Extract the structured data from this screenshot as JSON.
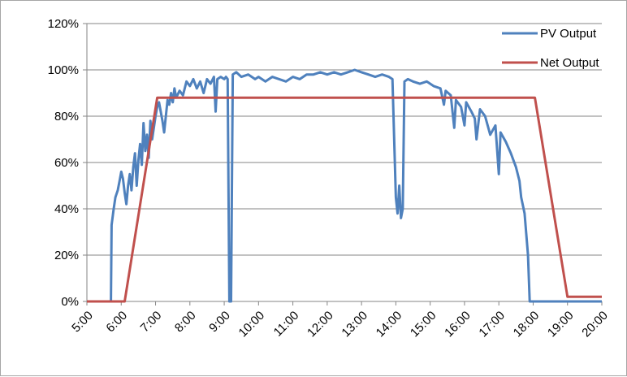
{
  "chart_data": {
    "type": "line",
    "title": "",
    "xlabel": "",
    "ylabel": "",
    "x_ticks": [
      "5:00",
      "6:00",
      "7:00",
      "8:00",
      "9:00",
      "10:00",
      "11:00",
      "12:00",
      "13:00",
      "14:00",
      "15:00",
      "16:00",
      "17:00",
      "18:00",
      "19:00",
      "20:00"
    ],
    "y_ticks": [
      "0%",
      "20%",
      "40%",
      "60%",
      "80%",
      "100%",
      "120%"
    ],
    "xlim": [
      5,
      20
    ],
    "ylim": [
      0,
      120
    ],
    "grid": "horizontal",
    "legend_position": "top-right",
    "series": [
      {
        "name": "PV Output",
        "color": "#4f81bd",
        "points": [
          [
            5.0,
            0
          ],
          [
            5.7,
            0
          ],
          [
            5.72,
            33
          ],
          [
            5.78,
            40
          ],
          [
            5.83,
            45
          ],
          [
            5.9,
            48
          ],
          [
            5.95,
            52
          ],
          [
            6.0,
            56
          ],
          [
            6.05,
            53
          ],
          [
            6.1,
            47
          ],
          [
            6.15,
            42
          ],
          [
            6.2,
            50
          ],
          [
            6.25,
            55
          ],
          [
            6.3,
            48
          ],
          [
            6.35,
            58
          ],
          [
            6.4,
            64
          ],
          [
            6.45,
            50
          ],
          [
            6.5,
            61
          ],
          [
            6.55,
            68
          ],
          [
            6.6,
            59
          ],
          [
            6.65,
            77
          ],
          [
            6.7,
            65
          ],
          [
            6.75,
            72
          ],
          [
            6.8,
            62
          ],
          [
            6.85,
            78
          ],
          [
            6.9,
            70
          ],
          [
            6.95,
            75
          ],
          [
            7.0,
            80
          ],
          [
            7.05,
            84
          ],
          [
            7.1,
            86
          ],
          [
            7.15,
            82
          ],
          [
            7.2,
            78
          ],
          [
            7.25,
            73
          ],
          [
            7.3,
            80
          ],
          [
            7.35,
            87
          ],
          [
            7.4,
            85
          ],
          [
            7.45,
            90
          ],
          [
            7.5,
            86
          ],
          [
            7.55,
            92
          ],
          [
            7.6,
            88
          ],
          [
            7.7,
            91
          ],
          [
            7.8,
            89
          ],
          [
            7.9,
            95
          ],
          [
            8.0,
            93
          ],
          [
            8.1,
            96
          ],
          [
            8.2,
            92
          ],
          [
            8.3,
            95
          ],
          [
            8.4,
            90
          ],
          [
            8.5,
            96
          ],
          [
            8.6,
            94
          ],
          [
            8.7,
            97
          ],
          [
            8.75,
            82
          ],
          [
            8.8,
            96
          ],
          [
            8.9,
            97
          ],
          [
            9.0,
            96
          ],
          [
            9.05,
            97
          ],
          [
            9.1,
            96
          ],
          [
            9.15,
            0
          ],
          [
            9.2,
            0
          ],
          [
            9.25,
            98
          ],
          [
            9.35,
            99
          ],
          [
            9.5,
            97
          ],
          [
            9.7,
            98
          ],
          [
            9.9,
            96
          ],
          [
            10.0,
            97
          ],
          [
            10.2,
            95
          ],
          [
            10.4,
            97
          ],
          [
            10.6,
            96
          ],
          [
            10.8,
            95
          ],
          [
            11.0,
            97
          ],
          [
            11.2,
            96
          ],
          [
            11.4,
            98
          ],
          [
            11.6,
            98
          ],
          [
            11.8,
            99
          ],
          [
            12.0,
            98
          ],
          [
            12.2,
            99
          ],
          [
            12.4,
            98
          ],
          [
            12.6,
            99
          ],
          [
            12.8,
            100
          ],
          [
            13.0,
            99
          ],
          [
            13.2,
            98
          ],
          [
            13.4,
            97
          ],
          [
            13.6,
            98
          ],
          [
            13.8,
            97
          ],
          [
            13.9,
            96
          ],
          [
            14.0,
            45
          ],
          [
            14.05,
            38
          ],
          [
            14.1,
            50
          ],
          [
            14.15,
            36
          ],
          [
            14.2,
            40
          ],
          [
            14.25,
            95
          ],
          [
            14.35,
            96
          ],
          [
            14.5,
            95
          ],
          [
            14.7,
            94
          ],
          [
            14.9,
            95
          ],
          [
            15.1,
            93
          ],
          [
            15.3,
            92
          ],
          [
            15.4,
            85
          ],
          [
            15.45,
            91
          ],
          [
            15.6,
            89
          ],
          [
            15.7,
            75
          ],
          [
            15.75,
            87
          ],
          [
            15.9,
            84
          ],
          [
            16.0,
            76
          ],
          [
            16.05,
            86
          ],
          [
            16.2,
            82
          ],
          [
            16.3,
            79
          ],
          [
            16.35,
            70
          ],
          [
            16.45,
            83
          ],
          [
            16.6,
            80
          ],
          [
            16.75,
            72
          ],
          [
            16.9,
            76
          ],
          [
            17.0,
            55
          ],
          [
            17.05,
            73
          ],
          [
            17.2,
            69
          ],
          [
            17.35,
            64
          ],
          [
            17.5,
            58
          ],
          [
            17.6,
            52
          ],
          [
            17.65,
            45
          ],
          [
            17.75,
            38
          ],
          [
            17.85,
            20
          ],
          [
            17.9,
            0
          ],
          [
            20.0,
            0
          ]
        ]
      },
      {
        "name": "Net Output",
        "color": "#c0504d",
        "points": [
          [
            5.0,
            0
          ],
          [
            6.1,
            0
          ],
          [
            7.05,
            88
          ],
          [
            18.05,
            88
          ],
          [
            19.0,
            2
          ],
          [
            20.0,
            2
          ]
        ]
      }
    ]
  }
}
